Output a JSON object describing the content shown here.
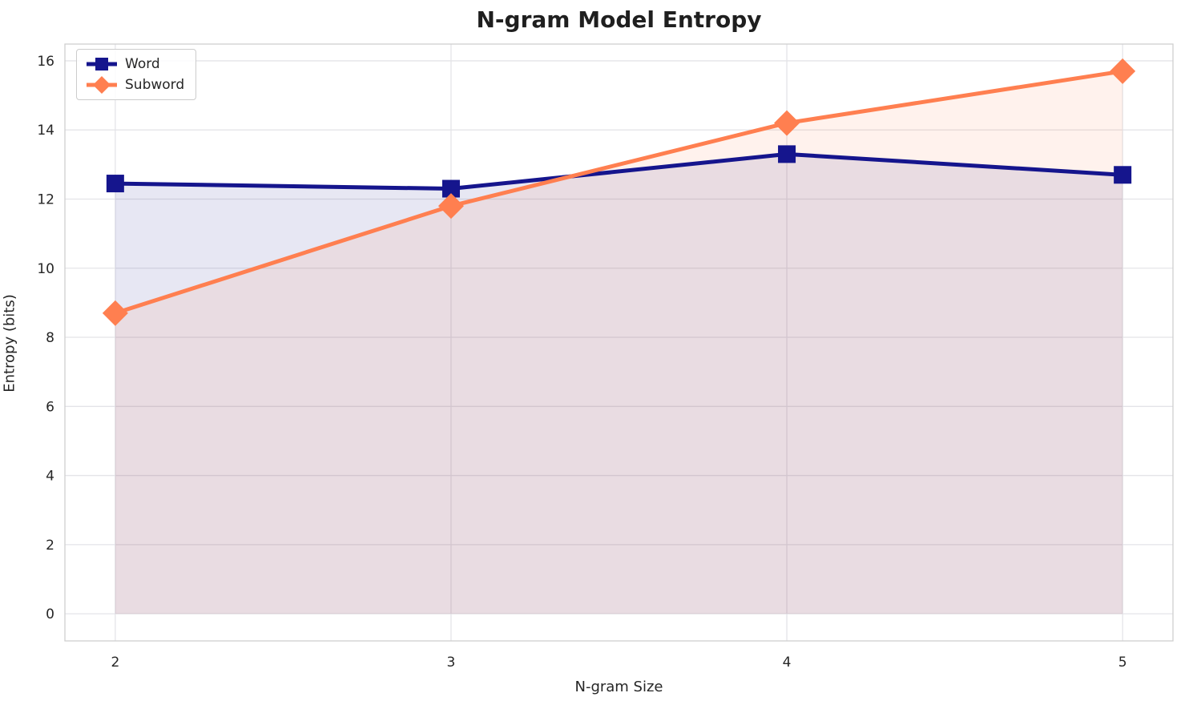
{
  "chart_data": {
    "type": "line",
    "title": "N-gram Model Entropy",
    "xlabel": "N-gram Size",
    "ylabel": "Entropy (bits)",
    "x": [
      2,
      3,
      4,
      5
    ],
    "xticks": [
      2,
      3,
      4,
      5
    ],
    "yticks": [
      0,
      2,
      4,
      6,
      8,
      10,
      12,
      14,
      16
    ],
    "ylim": [
      0,
      16
    ],
    "grid": true,
    "legend_position": "upper left",
    "series": [
      {
        "name": "Word",
        "values": [
          12.45,
          12.3,
          13.3,
          12.7
        ],
        "color": "#15158d",
        "marker": "square",
        "fill_opacity": 0.1
      },
      {
        "name": "Subword",
        "values": [
          8.7,
          11.8,
          14.2,
          15.7
        ],
        "color": "#ff7f50",
        "marker": "diamond",
        "fill_opacity": 0.1
      }
    ],
    "colors": {
      "grid": "#e4e4e8",
      "plot_border": "#cfcfcf",
      "tick_text": "#262626",
      "background": "#ffffff"
    }
  }
}
